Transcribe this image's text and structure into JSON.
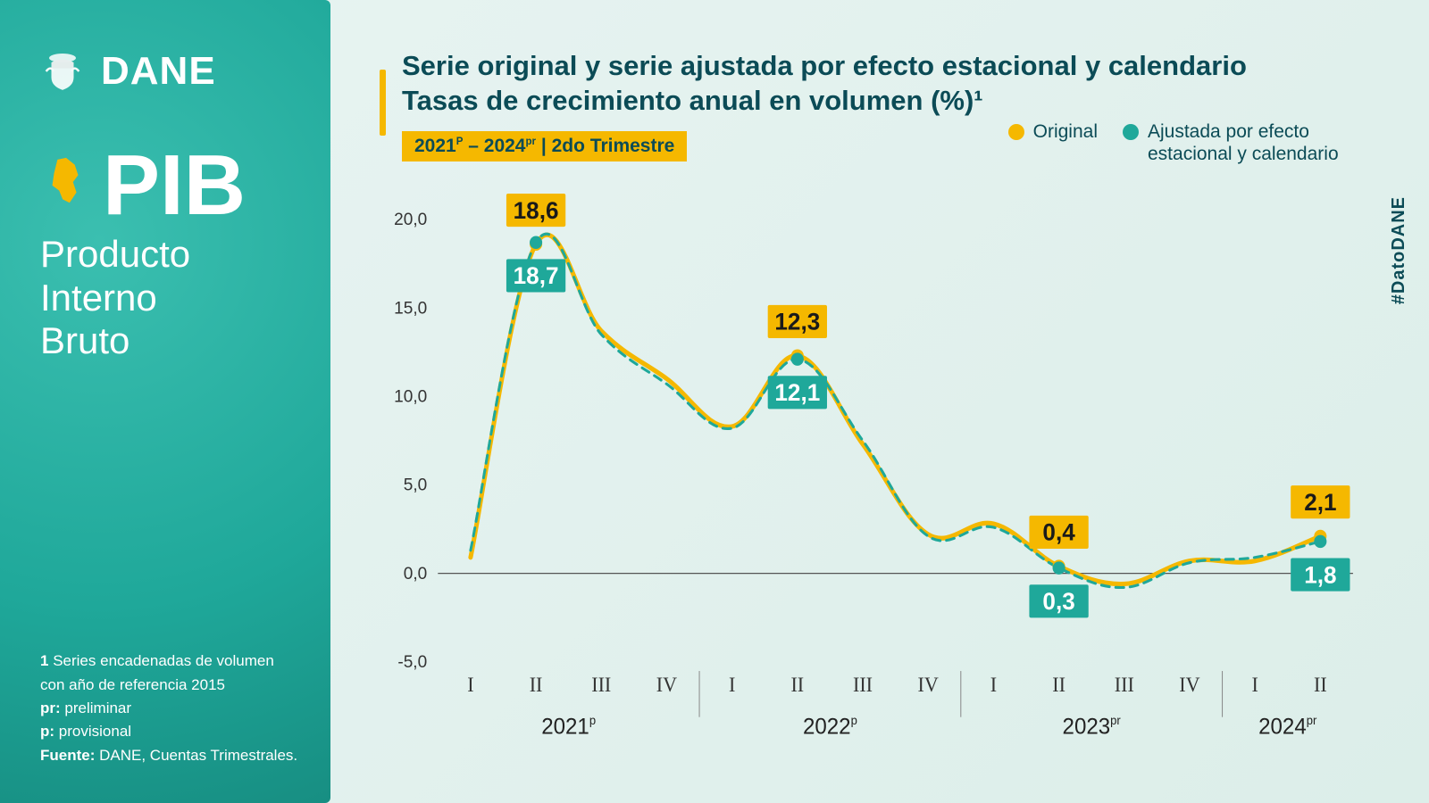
{
  "brand": "DANE",
  "sidebar": {
    "pib": "PIB",
    "pib_full_line1": "Producto",
    "pib_full_line2": "Interno",
    "pib_full_line3": "Bruto",
    "footnote1_num": "1",
    "footnote1": "Series encadenadas de volumen con año de referencia 2015",
    "pr_label": "pr:",
    "pr_text": "preliminar",
    "p_label": "p:",
    "p_text": "provisional",
    "fuente_label": "Fuente:",
    "fuente_text": "DANE, Cuentas Trimestrales."
  },
  "header": {
    "title_line1": "Serie original y serie ajustada por efecto estacional y calendario",
    "title_line2": "Tasas de crecimiento anual en volumen (%)¹",
    "chip_pre": "2021",
    "chip_sup1": "P",
    "chip_mid": " – 2024",
    "chip_sup2": "pr",
    "chip_post": " | 2do Trimestre"
  },
  "legend": {
    "original": "Original",
    "ajustada": "Ajustada por efecto estacional y calendario"
  },
  "hashtag": "#DatoDANE",
  "chart": {
    "type": "line",
    "colors": {
      "original": "#f5b800",
      "ajustada": "#1fa89a",
      "marker_original": "#f5b800",
      "marker_ajustada": "#1fa89a",
      "zero_line": "#555555",
      "ytick_text": "#333333",
      "background": "transparent"
    },
    "line_width_original": 5,
    "line_width_ajustada": 3,
    "dash_ajustada": "9 7",
    "marker_radius": 7,
    "ylim": [
      -5,
      20
    ],
    "yticks": [
      -5.0,
      0.0,
      5.0,
      10.0,
      15.0,
      20.0
    ],
    "ytick_labels": [
      "-5,0",
      "0,0",
      "5,0",
      "10,0",
      "15,0",
      "20,0"
    ],
    "x_quarters": [
      "I",
      "II",
      "III",
      "IV",
      "I",
      "II",
      "III",
      "IV",
      "I",
      "II",
      "III",
      "IV",
      "I",
      "II"
    ],
    "x_years": [
      {
        "label": "2021",
        "sup": "p",
        "span": [
          0,
          3
        ]
      },
      {
        "label": "2022",
        "sup": "p",
        "span": [
          4,
          7
        ]
      },
      {
        "label": "2023",
        "sup": "pr",
        "span": [
          8,
          11
        ]
      },
      {
        "label": "2024",
        "sup": "pr",
        "span": [
          12,
          13
        ]
      }
    ],
    "series": {
      "original": [
        0.9,
        18.6,
        13.7,
        11.0,
        8.3,
        12.3,
        7.3,
        2.2,
        2.8,
        0.4,
        -0.6,
        0.7,
        0.7,
        2.1
      ],
      "ajustada": [
        1.3,
        18.7,
        13.5,
        10.7,
        8.2,
        12.1,
        7.5,
        2.1,
        2.6,
        0.3,
        -0.8,
        0.6,
        0.9,
        1.8
      ]
    },
    "callouts": [
      {
        "i": 1,
        "original": "18,6",
        "ajustada": "18,7"
      },
      {
        "i": 5,
        "original": "12,3",
        "ajustada": "12,1"
      },
      {
        "i": 9,
        "original": "0,4",
        "ajustada": "0,3"
      },
      {
        "i": 13,
        "original": "2,1",
        "ajustada": "1,8"
      }
    ]
  }
}
